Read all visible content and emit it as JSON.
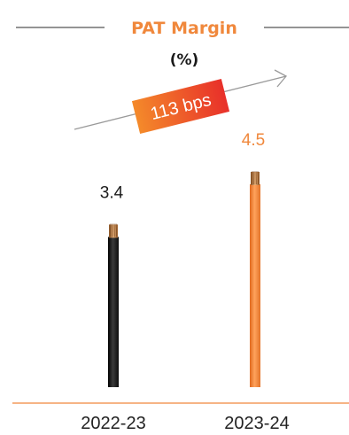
{
  "chart_data": {
    "type": "bar",
    "title": "PAT Margin",
    "unit": "(%)",
    "categories": [
      "2022-23",
      "2023-24"
    ],
    "values": [
      3.4,
      4.5
    ],
    "value_labels": [
      "3.4",
      "4.5"
    ],
    "ylim": [
      0,
      5
    ],
    "grid": false,
    "legend": "none",
    "annotation": "113 bps",
    "colors": {
      "title": "#f0883c",
      "bar_2022_23": "#1a1a1a",
      "bar_2023_24": "#f0883c",
      "label_2022_23": "#1a1a1a",
      "label_2023_24": "#f0883c",
      "baseline": "#f0883c",
      "copper": "#c98a4a"
    }
  }
}
